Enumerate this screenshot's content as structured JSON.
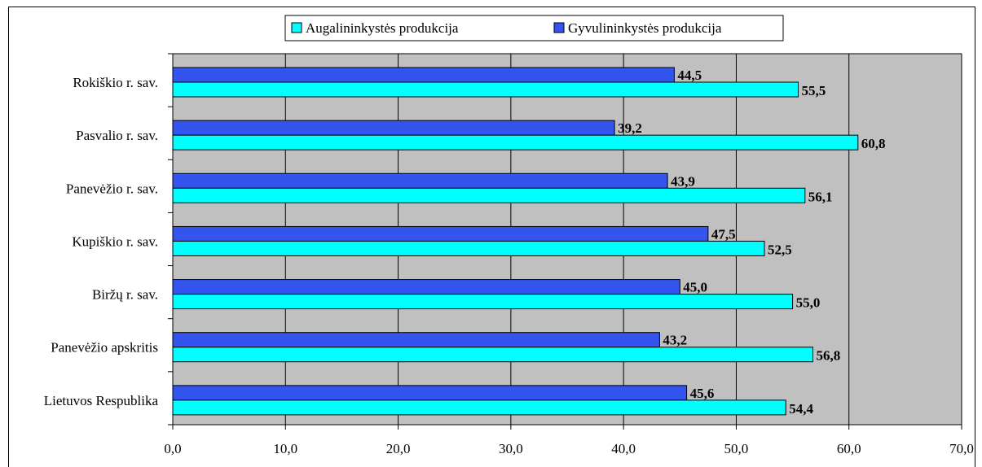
{
  "chart_data": {
    "type": "bar",
    "orientation": "horizontal",
    "categories": [
      "Rokiškio r. sav.",
      "Pasvalio r. sav.",
      "Panevėžio r. sav.",
      "Kupiškio r. sav.",
      "Biržų r. sav.",
      "Panevėžio apskritis",
      "Lietuvos Respublika"
    ],
    "series": [
      {
        "name": "Gyvulininkystės produkcija",
        "color": "#3355ee",
        "values": [
          44.5,
          39.2,
          43.9,
          47.5,
          45.0,
          43.2,
          45.6
        ],
        "labels": [
          "44,5",
          "39,2",
          "43,9",
          "47,5",
          "45,0",
          "43,2",
          "45,6"
        ]
      },
      {
        "name": "Augalininkystės produkcija",
        "color": "#00ffff",
        "values": [
          55.5,
          60.8,
          56.1,
          52.5,
          55.0,
          56.8,
          54.4
        ],
        "labels": [
          "55,5",
          "60,8",
          "56,1",
          "52,5",
          "55,0",
          "56,8",
          "54,4"
        ]
      }
    ],
    "legend_order": [
      "Augalininkystės produkcija",
      "Gyvulininkystės produkcija"
    ],
    "legend_position": "top",
    "xlim": [
      0,
      70
    ],
    "x_ticks": [
      0,
      10,
      20,
      30,
      40,
      50,
      60,
      70
    ],
    "x_tick_labels": [
      "0,0",
      "10,0",
      "20,0",
      "30,0",
      "40,0",
      "50,0",
      "60,0",
      "70,0"
    ],
    "grid": true,
    "plot_background": "#c0c0c0"
  }
}
